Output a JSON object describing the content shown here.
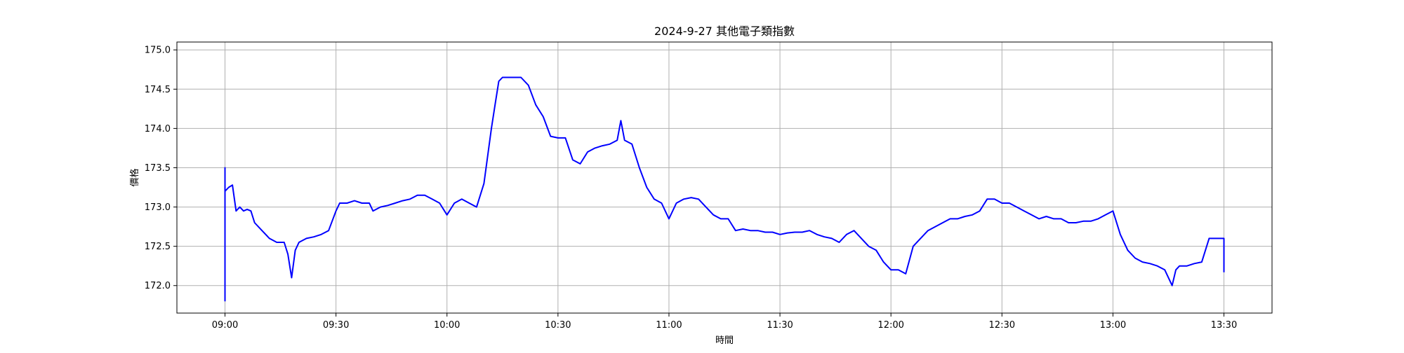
{
  "chart_data": {
    "type": "line",
    "title": "2024-9-27 其他電子類指數",
    "xlabel": "時間",
    "ylabel": "價格",
    "xlim": [
      "08:47",
      "13:43"
    ],
    "ylim": [
      171.65,
      175.1
    ],
    "x_ticks": [
      "09:00",
      "09:30",
      "10:00",
      "10:30",
      "11:00",
      "11:30",
      "12:00",
      "12:30",
      "13:00",
      "13:30"
    ],
    "y_ticks": [
      "172.0",
      "172.5",
      "173.0",
      "173.5",
      "174.0",
      "174.5",
      "175.0"
    ],
    "grid": true,
    "line_color": "#0000ff",
    "series": [
      {
        "x": [
          "09:00",
          "09:00",
          "09:00",
          "09:01",
          "09:02",
          "09:03",
          "09:04",
          "09:05",
          "09:06",
          "09:07",
          "09:08",
          "09:10",
          "09:12",
          "09:14",
          "09:16",
          "09:17",
          "09:18",
          "09:19",
          "09:20",
          "09:22",
          "09:24",
          "09:26",
          "09:28",
          "09:30",
          "09:31",
          "09:33",
          "09:35",
          "09:37",
          "09:39",
          "09:40",
          "09:42",
          "09:44",
          "09:46",
          "09:48",
          "09:50",
          "09:52",
          "09:54",
          "09:56",
          "09:58",
          "10:00",
          "10:02",
          "10:04",
          "10:06",
          "10:08",
          "10:10",
          "10:12",
          "10:13",
          "10:14",
          "10:15",
          "10:16",
          "10:18",
          "10:20",
          "10:22",
          "10:24",
          "10:26",
          "10:28",
          "10:30",
          "10:32",
          "10:34",
          "10:36",
          "10:38",
          "10:40",
          "10:42",
          "10:44",
          "10:46",
          "10:47",
          "10:48",
          "10:50",
          "10:52",
          "10:54",
          "10:56",
          "10:58",
          "11:00",
          "11:02",
          "11:04",
          "11:06",
          "11:08",
          "11:10",
          "11:12",
          "11:14",
          "11:16",
          "11:18",
          "11:20",
          "11:22",
          "11:24",
          "11:26",
          "11:28",
          "11:30",
          "11:32",
          "11:34",
          "11:36",
          "11:38",
          "11:40",
          "11:42",
          "11:44",
          "11:46",
          "11:48",
          "11:50",
          "11:52",
          "11:54",
          "11:56",
          "11:58",
          "12:00",
          "12:02",
          "12:04",
          "12:06",
          "12:08",
          "12:10",
          "12:12",
          "12:14",
          "12:16",
          "12:18",
          "12:20",
          "12:22",
          "12:24",
          "12:26",
          "12:28",
          "12:30",
          "12:32",
          "12:34",
          "12:36",
          "12:38",
          "12:40",
          "12:42",
          "12:44",
          "12:46",
          "12:48",
          "12:50",
          "12:52",
          "12:54",
          "12:56",
          "12:58",
          "13:00",
          "13:02",
          "13:04",
          "13:06",
          "13:08",
          "13:10",
          "13:12",
          "13:14",
          "13:16",
          "13:17",
          "13:18",
          "13:20",
          "13:22",
          "13:24",
          "13:26",
          "13:28",
          "13:30",
          "13:30"
        ],
        "y": [
          171.8,
          173.5,
          173.2,
          173.25,
          173.28,
          172.95,
          173.0,
          172.95,
          172.97,
          172.95,
          172.8,
          172.7,
          172.6,
          172.55,
          172.55,
          172.4,
          172.1,
          172.45,
          172.55,
          172.6,
          172.62,
          172.65,
          172.7,
          172.95,
          173.05,
          173.05,
          173.08,
          173.05,
          173.05,
          172.95,
          173.0,
          173.02,
          173.05,
          173.08,
          173.1,
          173.15,
          173.15,
          173.1,
          173.05,
          172.9,
          173.05,
          173.1,
          173.05,
          173.0,
          173.3,
          174.0,
          174.3,
          174.6,
          174.65,
          174.65,
          174.65,
          174.65,
          174.55,
          174.3,
          174.15,
          173.9,
          173.88,
          173.88,
          173.6,
          173.55,
          173.7,
          173.75,
          173.78,
          173.8,
          173.85,
          174.1,
          173.85,
          173.8,
          173.5,
          173.25,
          173.1,
          173.05,
          172.85,
          173.05,
          173.1,
          173.12,
          173.1,
          173.0,
          172.9,
          172.85,
          172.85,
          172.7,
          172.72,
          172.7,
          172.7,
          172.68,
          172.68,
          172.65,
          172.67,
          172.68,
          172.68,
          172.7,
          172.65,
          172.62,
          172.6,
          172.55,
          172.65,
          172.7,
          172.6,
          172.5,
          172.45,
          172.3,
          172.2,
          172.2,
          172.15,
          172.5,
          172.6,
          172.7,
          172.75,
          172.8,
          172.85,
          172.85,
          172.88,
          172.9,
          172.95,
          173.1,
          173.1,
          173.05,
          173.05,
          173.0,
          172.95,
          172.9,
          172.85,
          172.88,
          172.85,
          172.85,
          172.8,
          172.8,
          172.82,
          172.82,
          172.85,
          172.9,
          172.95,
          172.65,
          172.45,
          172.35,
          172.3,
          172.28,
          172.25,
          172.2,
          172.0,
          172.2,
          172.25,
          172.25,
          172.28,
          172.3,
          172.6,
          172.6,
          172.6,
          172.17
        ]
      }
    ]
  }
}
